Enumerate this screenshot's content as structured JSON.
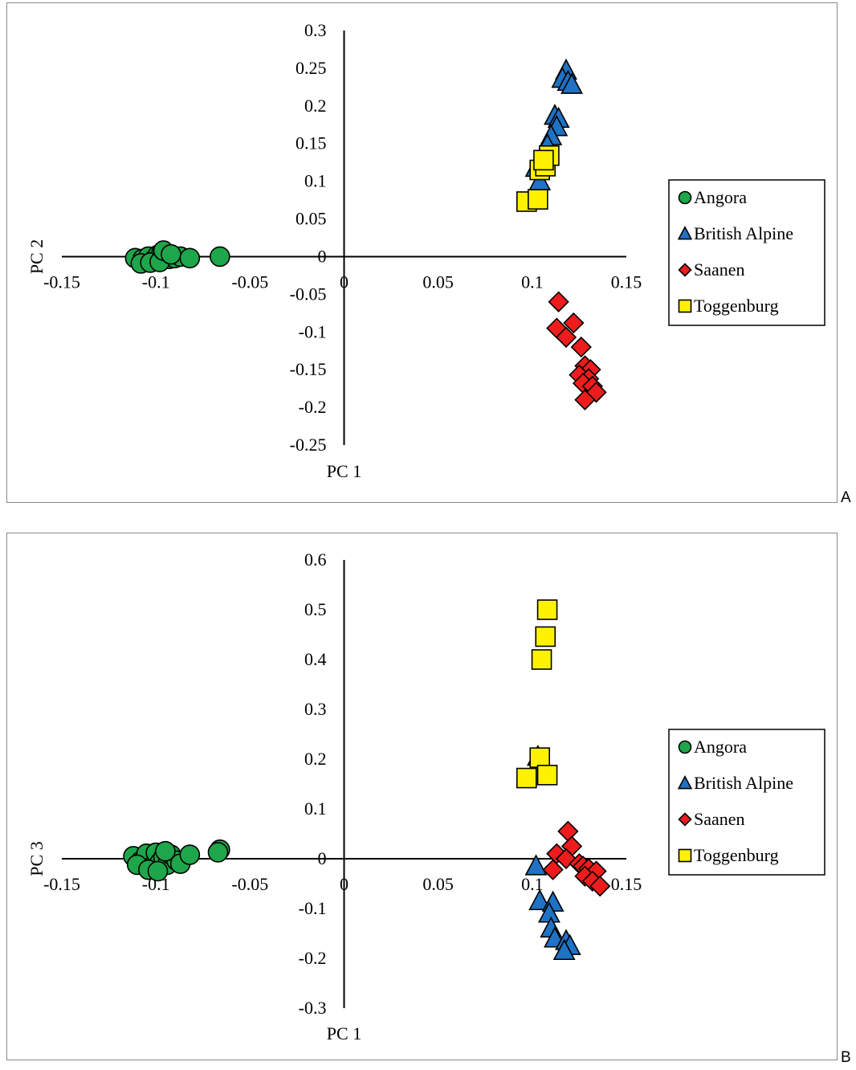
{
  "colors": {
    "Angora": "#1ea64a",
    "British Alpine": "#1f72c4",
    "Saanen": "#ee1c1c",
    "Toggenburg": "#fff200",
    "outline": "#000000"
  },
  "chart_data": [
    {
      "type": "scatter",
      "panel_label": "A",
      "xlabel": "PC 1",
      "ylabel": "PC 2",
      "xlim": [
        -0.15,
        0.15
      ],
      "ylim": [
        -0.25,
        0.3
      ],
      "xticks": [
        "-0.15",
        "-0.1",
        "-0.05",
        "0",
        "0.05",
        "0.1",
        "0.15"
      ],
      "yticks": [
        "0.3",
        "0.25",
        "0.2",
        "0.15",
        "0.1",
        "0.05",
        "0",
        "-0.05",
        "-0.1",
        "-0.15",
        "-0.2",
        "-0.25"
      ],
      "legend_position": "right",
      "series": [
        {
          "name": "Angora",
          "marker": "circle",
          "points": [
            [
              -0.111,
              -0.002
            ],
            [
              -0.107,
              -0.003
            ],
            [
              -0.104,
              0.0
            ],
            [
              -0.101,
              -0.004
            ],
            [
              -0.099,
              0.002
            ],
            [
              -0.097,
              0.005
            ],
            [
              -0.095,
              0.001
            ],
            [
              -0.093,
              -0.003
            ],
            [
              -0.09,
              -0.002
            ],
            [
              -0.087,
              0.0
            ],
            [
              -0.108,
              -0.009
            ],
            [
              -0.103,
              -0.008
            ],
            [
              -0.098,
              -0.007
            ],
            [
              -0.096,
              0.008
            ],
            [
              -0.092,
              0.003
            ],
            [
              -0.082,
              -0.002
            ],
            [
              -0.066,
              0.0
            ]
          ]
        },
        {
          "name": "British Alpine",
          "marker": "triangle",
          "points": [
            [
              0.118,
              0.247
            ],
            [
              0.116,
              0.236
            ],
            [
              0.119,
              0.232
            ],
            [
              0.121,
              0.228
            ],
            [
              0.112,
              0.187
            ],
            [
              0.114,
              0.183
            ],
            [
              0.113,
              0.172
            ],
            [
              0.11,
              0.16
            ],
            [
              0.108,
              0.148
            ],
            [
              0.105,
              0.122
            ],
            [
              0.102,
              0.118
            ],
            [
              0.104,
              0.1
            ]
          ]
        },
        {
          "name": "Saanen",
          "marker": "diamond",
          "points": [
            [
              0.114,
              -0.06
            ],
            [
              0.113,
              -0.095
            ],
            [
              0.122,
              -0.088
            ],
            [
              0.118,
              -0.107
            ],
            [
              0.126,
              -0.12
            ],
            [
              0.128,
              -0.145
            ],
            [
              0.131,
              -0.15
            ],
            [
              0.125,
              -0.157
            ],
            [
              0.13,
              -0.162
            ],
            [
              0.127,
              -0.168
            ],
            [
              0.132,
              -0.172
            ],
            [
              0.134,
              -0.18
            ],
            [
              0.128,
              -0.19
            ]
          ]
        },
        {
          "name": "Toggenburg",
          "marker": "square",
          "points": [
            [
              0.097,
              0.073
            ],
            [
              0.103,
              0.076
            ],
            [
              0.104,
              0.115
            ],
            [
              0.107,
              0.12
            ],
            [
              0.109,
              0.134
            ],
            [
              0.106,
              0.128
            ]
          ]
        }
      ]
    },
    {
      "type": "scatter",
      "panel_label": "B",
      "xlabel": "PC 1",
      "ylabel": "PC 3",
      "xlim": [
        -0.15,
        0.15
      ],
      "ylim": [
        -0.3,
        0.6
      ],
      "xticks": [
        "-0.15",
        "-0.1",
        "-0.05",
        "0",
        "0.05",
        "0.1",
        "0.15"
      ],
      "yticks": [
        "0.6",
        "0.5",
        "0.4",
        "0.3",
        "0.2",
        "0.1",
        "0",
        "-0.1",
        "-0.2",
        "-0.3"
      ],
      "legend_position": "right",
      "series": [
        {
          "name": "Angora",
          "marker": "circle",
          "points": [
            [
              -0.112,
              0.005
            ],
            [
              -0.108,
              -0.005
            ],
            [
              -0.105,
              0.01
            ],
            [
              -0.102,
              -0.015
            ],
            [
              -0.1,
              0.012
            ],
            [
              -0.098,
              -0.008
            ],
            [
              -0.096,
              0.003
            ],
            [
              -0.094,
              -0.012
            ],
            [
              -0.092,
              0.008
            ],
            [
              -0.089,
              -0.004
            ],
            [
              -0.11,
              -0.012
            ],
            [
              -0.104,
              -0.022
            ],
            [
              -0.099,
              -0.025
            ],
            [
              -0.095,
              0.015
            ],
            [
              -0.087,
              -0.01
            ],
            [
              -0.082,
              0.008
            ],
            [
              -0.066,
              0.018
            ],
            [
              -0.067,
              0.013
            ]
          ]
        },
        {
          "name": "British Alpine",
          "marker": "triangle",
          "points": [
            [
              0.103,
              0.205
            ],
            [
              0.102,
              -0.015
            ],
            [
              0.104,
              -0.085
            ],
            [
              0.111,
              -0.088
            ],
            [
              0.109,
              -0.11
            ],
            [
              0.11,
              -0.14
            ],
            [
              0.112,
              -0.16
            ],
            [
              0.118,
              -0.165
            ],
            [
              0.12,
              -0.175
            ],
            [
              0.117,
              -0.185
            ]
          ]
        },
        {
          "name": "Saanen",
          "marker": "diamond",
          "points": [
            [
              0.119,
              0.055
            ],
            [
              0.113,
              0.01
            ],
            [
              0.121,
              0.025
            ],
            [
              0.118,
              0.0
            ],
            [
              0.125,
              -0.01
            ],
            [
              0.111,
              -0.022
            ],
            [
              0.127,
              -0.015
            ],
            [
              0.13,
              -0.02
            ],
            [
              0.134,
              -0.025
            ],
            [
              0.128,
              -0.035
            ],
            [
              0.132,
              -0.045
            ],
            [
              0.136,
              -0.055
            ]
          ]
        },
        {
          "name": "Toggenburg",
          "marker": "square",
          "points": [
            [
              0.108,
              0.5
            ],
            [
              0.107,
              0.446
            ],
            [
              0.105,
              0.4
            ],
            [
              0.104,
              0.203
            ],
            [
              0.097,
              0.162
            ],
            [
              0.108,
              0.168
            ]
          ]
        }
      ]
    }
  ]
}
